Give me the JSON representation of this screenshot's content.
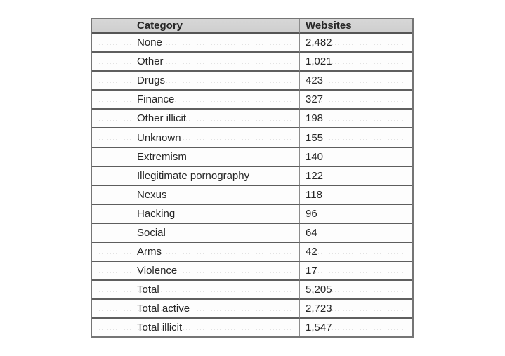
{
  "page": {
    "background": "#ffffff"
  },
  "table": {
    "columns": [
      "Category",
      "Websites"
    ],
    "rows": [
      {
        "category": "None",
        "websites": "2,482"
      },
      {
        "category": "Other",
        "websites": "1,021"
      },
      {
        "category": "Drugs",
        "websites": "423"
      },
      {
        "category": "Finance",
        "websites": "327"
      },
      {
        "category": "Other illicit",
        "websites": "198"
      },
      {
        "category": "Unknown",
        "websites": "155"
      },
      {
        "category": "Extremism",
        "websites": "140"
      },
      {
        "category": "Illegitimate pornography",
        "websites": "122"
      },
      {
        "category": "Nexus",
        "websites": "118"
      },
      {
        "category": "Hacking",
        "websites": "96"
      },
      {
        "category": "Social",
        "websites": "64"
      },
      {
        "category": "Arms",
        "websites": "42"
      },
      {
        "category": "Violence",
        "websites": "17"
      },
      {
        "category": "Total",
        "websites": "5,205"
      },
      {
        "category": "Total active",
        "websites": "2,723"
      },
      {
        "category": "Total illicit",
        "websites": "1,547"
      }
    ]
  },
  "chart_data": {
    "type": "table",
    "title": "",
    "columns": [
      "Category",
      "Websites"
    ],
    "rows": [
      [
        "None",
        2482
      ],
      [
        "Other",
        1021
      ],
      [
        "Drugs",
        423
      ],
      [
        "Finance",
        327
      ],
      [
        "Other illicit",
        198
      ],
      [
        "Unknown",
        155
      ],
      [
        "Extremism",
        140
      ],
      [
        "Illegitimate pornography",
        122
      ],
      [
        "Nexus",
        118
      ],
      [
        "Hacking",
        96
      ],
      [
        "Social",
        64
      ],
      [
        "Arms",
        42
      ],
      [
        "Violence",
        17
      ],
      [
        "Total",
        5205
      ],
      [
        "Total active",
        2723
      ],
      [
        "Total illicit",
        1547
      ]
    ]
  },
  "colors": {
    "header_bg": "#d2d2d2",
    "border_outer": "#757575",
    "border_row": "#5e5e5e",
    "border_column": "#8c8c8c",
    "text": "#262626"
  }
}
